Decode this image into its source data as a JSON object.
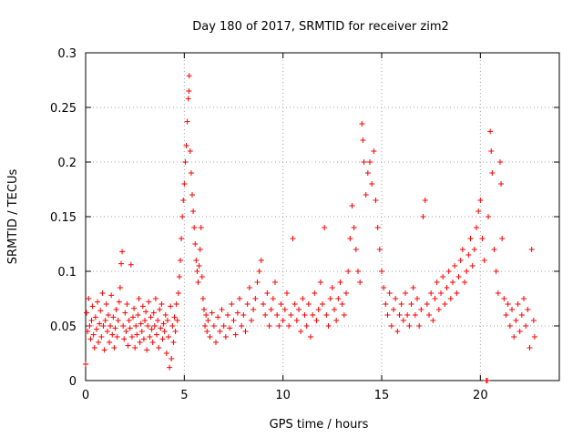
{
  "chart_data": {
    "type": "scatter",
    "title": "Day 180 of 2017, SRMTID for receiver zim2",
    "xlabel": "GPS time / hours",
    "ylabel": "SRMTID / TECUs",
    "xlim": [
      0,
      24
    ],
    "ylim": [
      0,
      0.3
    ],
    "xticks": [
      0,
      5,
      10,
      15,
      20
    ],
    "xtick_labels": [
      "0",
      "5",
      "10",
      "15",
      "20"
    ],
    "yticks": [
      0,
      0.05,
      0.1,
      0.15,
      0.2,
      0.25,
      0.3
    ],
    "ytick_labels": [
      "0",
      "0.05",
      "0.1",
      "0.15",
      "0.2",
      "0.25",
      "0.3"
    ],
    "grid": true,
    "marker": "+",
    "color": "#ff0000",
    "series": [
      {
        "name": "SRMTID",
        "points": [
          [
            0.0,
            0.015
          ],
          [
            0.05,
            0.062
          ],
          [
            0.1,
            0.045
          ],
          [
            0.15,
            0.075
          ],
          [
            0.2,
            0.05
          ],
          [
            0.25,
            0.038
          ],
          [
            0.3,
            0.055
          ],
          [
            0.35,
            0.068
          ],
          [
            0.4,
            0.042
          ],
          [
            0.45,
            0.03
          ],
          [
            0.5,
            0.058
          ],
          [
            0.55,
            0.047
          ],
          [
            0.6,
            0.072
          ],
          [
            0.65,
            0.035
          ],
          [
            0.7,
            0.052
          ],
          [
            0.75,
            0.064
          ],
          [
            0.8,
            0.04
          ],
          [
            0.85,
            0.08
          ],
          [
            0.9,
            0.05
          ],
          [
            0.95,
            0.028
          ],
          [
            1.0,
            0.055
          ],
          [
            1.05,
            0.07
          ],
          [
            1.1,
            0.045
          ],
          [
            1.15,
            0.06
          ],
          [
            1.2,
            0.035
          ],
          [
            1.25,
            0.05
          ],
          [
            1.3,
            0.078
          ],
          [
            1.35,
            0.042
          ],
          [
            1.4,
            0.058
          ],
          [
            1.45,
            0.03
          ],
          [
            1.5,
            0.048
          ],
          [
            1.55,
            0.065
          ],
          [
            1.6,
            0.04
          ],
          [
            1.65,
            0.055
          ],
          [
            1.7,
            0.072
          ],
          [
            1.75,
            0.085
          ],
          [
            1.8,
            0.107
          ],
          [
            1.85,
            0.118
          ],
          [
            1.9,
            0.05
          ],
          [
            1.95,
            0.038
          ],
          [
            2.0,
            0.062
          ],
          [
            2.05,
            0.045
          ],
          [
            2.1,
            0.07
          ],
          [
            2.15,
            0.032
          ],
          [
            2.2,
            0.055
          ],
          [
            2.25,
            0.048
          ],
          [
            2.3,
            0.106
          ],
          [
            2.35,
            0.04
          ],
          [
            2.4,
            0.058
          ],
          [
            2.45,
            0.066
          ],
          [
            2.5,
            0.03
          ],
          [
            2.55,
            0.05
          ],
          [
            2.6,
            0.042
          ],
          [
            2.65,
            0.06
          ],
          [
            2.7,
            0.075
          ],
          [
            2.75,
            0.035
          ],
          [
            2.8,
            0.052
          ],
          [
            2.85,
            0.045
          ],
          [
            2.9,
            0.068
          ],
          [
            2.95,
            0.038
          ],
          [
            3.0,
            0.055
          ],
          [
            3.05,
            0.063
          ],
          [
            3.1,
            0.028
          ],
          [
            3.15,
            0.05
          ],
          [
            3.2,
            0.072
          ],
          [
            3.25,
            0.04
          ],
          [
            3.3,
            0.058
          ],
          [
            3.35,
            0.047
          ],
          [
            3.4,
            0.035
          ],
          [
            3.45,
            0.062
          ],
          [
            3.5,
            0.05
          ],
          [
            3.55,
            0.075
          ],
          [
            3.6,
            0.042
          ],
          [
            3.65,
            0.055
          ],
          [
            3.7,
            0.03
          ],
          [
            3.75,
            0.065
          ],
          [
            3.8,
            0.048
          ],
          [
            3.85,
            0.07
          ],
          [
            3.9,
            0.038
          ],
          [
            3.95,
            0.052
          ],
          [
            4.0,
            0.045
          ],
          [
            4.05,
            0.06
          ],
          [
            4.1,
            0.025
          ],
          [
            4.15,
            0.055
          ],
          [
            4.2,
            0.04
          ],
          [
            4.25,
            0.012
          ],
          [
            4.3,
            0.068
          ],
          [
            4.35,
            0.02
          ],
          [
            4.4,
            0.05
          ],
          [
            4.45,
            0.035
          ],
          [
            4.5,
            0.058
          ],
          [
            4.55,
            0.045
          ],
          [
            4.6,
            0.07
          ],
          [
            4.65,
            0.055
          ],
          [
            4.7,
            0.08
          ],
          [
            4.75,
            0.095
          ],
          [
            4.8,
            0.11
          ],
          [
            4.85,
            0.13
          ],
          [
            4.9,
            0.15
          ],
          [
            4.95,
            0.165
          ],
          [
            5.0,
            0.18
          ],
          [
            5.05,
            0.2
          ],
          [
            5.1,
            0.215
          ],
          [
            5.15,
            0.237
          ],
          [
            5.2,
            0.258
          ],
          [
            5.23,
            0.265
          ],
          [
            5.25,
            0.279
          ],
          [
            5.3,
            0.21
          ],
          [
            5.35,
            0.19
          ],
          [
            5.4,
            0.17
          ],
          [
            5.45,
            0.155
          ],
          [
            5.5,
            0.14
          ],
          [
            5.55,
            0.125
          ],
          [
            5.6,
            0.11
          ],
          [
            5.65,
            0.1
          ],
          [
            5.7,
            0.09
          ],
          [
            5.75,
            0.105
          ],
          [
            5.8,
            0.12
          ],
          [
            5.85,
            0.14
          ],
          [
            5.9,
            0.095
          ],
          [
            5.95,
            0.075
          ],
          [
            6.0,
            0.065
          ],
          [
            6.05,
            0.05
          ],
          [
            6.1,
            0.06
          ],
          [
            6.15,
            0.045
          ],
          [
            6.2,
            0.055
          ],
          [
            6.3,
            0.04
          ],
          [
            6.4,
            0.062
          ],
          [
            6.5,
            0.05
          ],
          [
            6.6,
            0.035
          ],
          [
            6.7,
            0.058
          ],
          [
            6.8,
            0.045
          ],
          [
            6.9,
            0.065
          ],
          [
            7.0,
            0.05
          ],
          [
            7.1,
            0.04
          ],
          [
            7.2,
            0.06
          ],
          [
            7.3,
            0.048
          ],
          [
            7.4,
            0.07
          ],
          [
            7.5,
            0.055
          ],
          [
            7.6,
            0.042
          ],
          [
            7.7,
            0.062
          ],
          [
            7.8,
            0.075
          ],
          [
            7.9,
            0.05
          ],
          [
            8.0,
            0.06
          ],
          [
            8.1,
            0.045
          ],
          [
            8.2,
            0.07
          ],
          [
            8.3,
            0.085
          ],
          [
            8.4,
            0.055
          ],
          [
            8.5,
            0.065
          ],
          [
            8.6,
            0.075
          ],
          [
            8.7,
            0.09
          ],
          [
            8.8,
            0.1
          ],
          [
            8.9,
            0.11
          ],
          [
            9.0,
            0.07
          ],
          [
            9.1,
            0.06
          ],
          [
            9.2,
            0.08
          ],
          [
            9.3,
            0.05
          ],
          [
            9.4,
            0.065
          ],
          [
            9.5,
            0.075
          ],
          [
            9.6,
            0.09
          ],
          [
            9.7,
            0.06
          ],
          [
            9.8,
            0.05
          ],
          [
            9.9,
            0.07
          ],
          [
            10.0,
            0.055
          ],
          [
            10.1,
            0.065
          ],
          [
            10.2,
            0.08
          ],
          [
            10.3,
            0.05
          ],
          [
            10.4,
            0.06
          ],
          [
            10.5,
            0.13
          ],
          [
            10.6,
            0.07
          ],
          [
            10.7,
            0.055
          ],
          [
            10.8,
            0.065
          ],
          [
            10.9,
            0.045
          ],
          [
            11.0,
            0.075
          ],
          [
            11.1,
            0.06
          ],
          [
            11.2,
            0.05
          ],
          [
            11.3,
            0.07
          ],
          [
            11.4,
            0.04
          ],
          [
            11.5,
            0.06
          ],
          [
            11.6,
            0.08
          ],
          [
            11.7,
            0.055
          ],
          [
            11.8,
            0.065
          ],
          [
            11.9,
            0.09
          ],
          [
            12.0,
            0.07
          ],
          [
            12.1,
            0.14
          ],
          [
            12.2,
            0.06
          ],
          [
            12.3,
            0.05
          ],
          [
            12.4,
            0.075
          ],
          [
            12.5,
            0.085
          ],
          [
            12.6,
            0.065
          ],
          [
            12.7,
            0.055
          ],
          [
            12.8,
            0.075
          ],
          [
            12.9,
            0.09
          ],
          [
            13.0,
            0.07
          ],
          [
            13.1,
            0.06
          ],
          [
            13.2,
            0.08
          ],
          [
            13.3,
            0.1
          ],
          [
            13.4,
            0.13
          ],
          [
            13.5,
            0.16
          ],
          [
            13.6,
            0.14
          ],
          [
            13.7,
            0.12
          ],
          [
            13.8,
            0.1
          ],
          [
            13.9,
            0.09
          ],
          [
            14.0,
            0.235
          ],
          [
            14.05,
            0.22
          ],
          [
            14.1,
            0.2
          ],
          [
            14.2,
            0.17
          ],
          [
            14.3,
            0.19
          ],
          [
            14.4,
            0.2
          ],
          [
            14.5,
            0.18
          ],
          [
            14.6,
            0.21
          ],
          [
            14.7,
            0.165
          ],
          [
            14.8,
            0.14
          ],
          [
            14.9,
            0.12
          ],
          [
            15.0,
            0.1
          ],
          [
            15.1,
            0.085
          ],
          [
            15.2,
            0.07
          ],
          [
            15.3,
            0.06
          ],
          [
            15.4,
            0.08
          ],
          [
            15.5,
            0.05
          ],
          [
            15.6,
            0.065
          ],
          [
            15.7,
            0.075
          ],
          [
            15.8,
            0.045
          ],
          [
            15.9,
            0.06
          ],
          [
            16.0,
            0.07
          ],
          [
            16.1,
            0.055
          ],
          [
            16.2,
            0.08
          ],
          [
            16.3,
            0.06
          ],
          [
            16.4,
            0.05
          ],
          [
            16.5,
            0.07
          ],
          [
            16.6,
            0.085
          ],
          [
            16.7,
            0.06
          ],
          [
            16.8,
            0.075
          ],
          [
            16.9,
            0.05
          ],
          [
            17.0,
            0.065
          ],
          [
            17.1,
            0.15
          ],
          [
            17.2,
            0.165
          ],
          [
            17.3,
            0.07
          ],
          [
            17.4,
            0.06
          ],
          [
            17.5,
            0.08
          ],
          [
            17.6,
            0.055
          ],
          [
            17.7,
            0.075
          ],
          [
            17.8,
            0.09
          ],
          [
            17.9,
            0.065
          ],
          [
            18.0,
            0.08
          ],
          [
            18.1,
            0.095
          ],
          [
            18.2,
            0.07
          ],
          [
            18.3,
            0.085
          ],
          [
            18.4,
            0.1
          ],
          [
            18.5,
            0.075
          ],
          [
            18.6,
            0.09
          ],
          [
            18.7,
            0.105
          ],
          [
            18.8,
            0.08
          ],
          [
            18.9,
            0.095
          ],
          [
            19.0,
            0.11
          ],
          [
            19.1,
            0.12
          ],
          [
            19.2,
            0.09
          ],
          [
            19.3,
            0.1
          ],
          [
            19.4,
            0.115
          ],
          [
            19.5,
            0.13
          ],
          [
            19.6,
            0.105
          ],
          [
            19.7,
            0.12
          ],
          [
            19.8,
            0.14
          ],
          [
            19.9,
            0.155
          ],
          [
            20.0,
            0.165
          ],
          [
            20.1,
            0.13
          ],
          [
            20.2,
            0.11
          ],
          [
            20.3,
            0.0
          ],
          [
            20.35,
            0.0
          ],
          [
            20.4,
            0.15
          ],
          [
            20.5,
            0.228
          ],
          [
            20.55,
            0.21
          ],
          [
            20.6,
            0.19
          ],
          [
            20.7,
            0.12
          ],
          [
            20.8,
            0.1
          ],
          [
            20.9,
            0.08
          ],
          [
            21.0,
            0.2
          ],
          [
            21.05,
            0.18
          ],
          [
            21.1,
            0.13
          ],
          [
            21.2,
            0.075
          ],
          [
            21.3,
            0.06
          ],
          [
            21.4,
            0.07
          ],
          [
            21.5,
            0.05
          ],
          [
            21.6,
            0.065
          ],
          [
            21.7,
            0.04
          ],
          [
            21.8,
            0.055
          ],
          [
            21.9,
            0.07
          ],
          [
            22.0,
            0.045
          ],
          [
            22.1,
            0.06
          ],
          [
            22.2,
            0.075
          ],
          [
            22.3,
            0.05
          ],
          [
            22.4,
            0.065
          ],
          [
            22.5,
            0.03
          ],
          [
            22.6,
            0.12
          ],
          [
            22.7,
            0.055
          ],
          [
            22.75,
            0.04
          ]
        ]
      }
    ]
  }
}
